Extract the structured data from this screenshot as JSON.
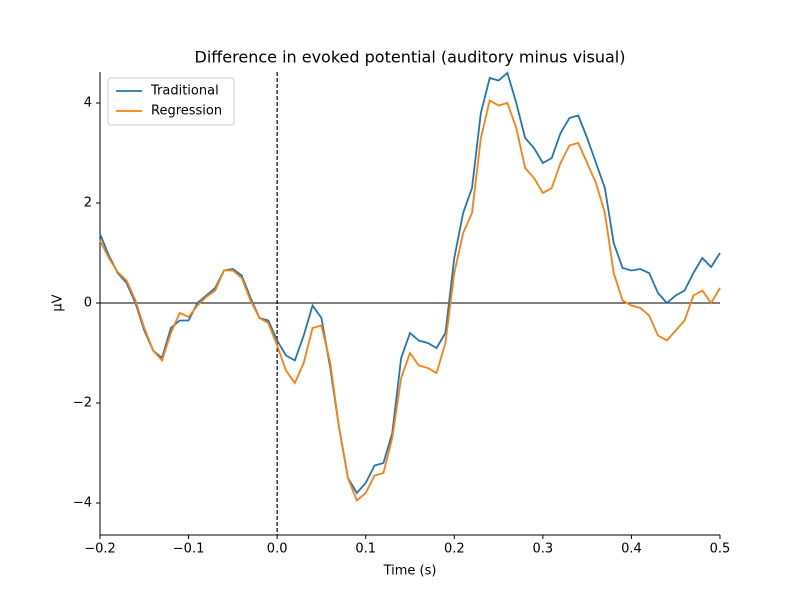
{
  "chart_data": {
    "type": "line",
    "title": "Difference in evoked potential (auditory minus visual)",
    "xlabel": "Time (s)",
    "ylabel": "µV",
    "x": [
      -0.2,
      -0.19,
      -0.18,
      -0.17,
      -0.16,
      -0.15,
      -0.14,
      -0.13,
      -0.12,
      -0.11,
      -0.1,
      -0.09,
      -0.08,
      -0.07,
      -0.06,
      -0.05,
      -0.04,
      -0.03,
      -0.02,
      -0.01,
      0,
      0.01,
      0.02,
      0.03,
      0.04,
      0.05,
      0.06,
      0.07,
      0.08,
      0.09,
      0.1,
      0.11,
      0.12,
      0.13,
      0.14,
      0.15,
      0.16,
      0.17,
      0.18,
      0.19,
      0.2,
      0.21,
      0.22,
      0.23,
      0.24,
      0.25,
      0.26,
      0.27,
      0.28,
      0.29,
      0.3,
      0.31,
      0.32,
      0.33,
      0.34,
      0.35,
      0.36,
      0.37,
      0.38,
      0.39,
      0.4,
      0.41,
      0.42,
      0.43,
      0.44,
      0.45,
      0.46,
      0.47,
      0.48,
      0.49,
      0.5
    ],
    "series": [
      {
        "name": "Traditional",
        "color": "#1f77b4",
        "values": [
          1.38,
          0.95,
          0.6,
          0.4,
          0.0,
          -0.55,
          -0.95,
          -1.1,
          -0.5,
          -0.35,
          -0.35,
          0.0,
          0.15,
          0.3,
          0.65,
          0.68,
          0.55,
          0.1,
          -0.3,
          -0.35,
          -0.75,
          -1.05,
          -1.15,
          -0.65,
          -0.05,
          -0.3,
          -1.3,
          -2.5,
          -3.5,
          -3.8,
          -3.6,
          -3.25,
          -3.2,
          -2.6,
          -1.1,
          -0.6,
          -0.75,
          -0.8,
          -0.9,
          -0.6,
          0.9,
          1.8,
          2.3,
          3.8,
          4.5,
          4.45,
          4.6,
          4.0,
          3.3,
          3.1,
          2.8,
          2.9,
          3.4,
          3.7,
          3.75,
          3.3,
          2.8,
          2.3,
          1.2,
          0.7,
          0.65,
          0.68,
          0.6,
          0.2,
          0.0,
          0.15,
          0.25,
          0.6,
          0.9,
          0.72,
          1.0
        ]
      },
      {
        "name": "Regression",
        "color": "#ff7f0e",
        "values": [
          1.25,
          0.9,
          0.62,
          0.45,
          0.05,
          -0.5,
          -0.95,
          -1.15,
          -0.6,
          -0.2,
          -0.28,
          -0.05,
          0.12,
          0.25,
          0.65,
          0.65,
          0.5,
          0.05,
          -0.3,
          -0.4,
          -0.85,
          -1.35,
          -1.6,
          -1.2,
          -0.5,
          -0.45,
          -1.2,
          -2.5,
          -3.5,
          -3.95,
          -3.8,
          -3.45,
          -3.4,
          -2.7,
          -1.5,
          -1.0,
          -1.25,
          -1.3,
          -1.4,
          -0.8,
          0.6,
          1.4,
          1.8,
          3.3,
          4.05,
          3.95,
          4.0,
          3.5,
          2.7,
          2.5,
          2.2,
          2.3,
          2.8,
          3.15,
          3.2,
          2.8,
          2.4,
          1.8,
          0.6,
          0.05,
          -0.05,
          -0.1,
          -0.25,
          -0.65,
          -0.75,
          -0.55,
          -0.35,
          0.15,
          0.25,
          0.0,
          0.3
        ]
      }
    ],
    "xlim": [
      -0.2,
      0.5
    ],
    "ylim": [
      -4.64,
      4.62
    ],
    "xticks": [
      {
        "value": -0.2,
        "label": "−0.2"
      },
      {
        "value": -0.1,
        "label": "−0.1"
      },
      {
        "value": 0,
        "label": "0.0"
      },
      {
        "value": 0.1,
        "label": "0.1"
      },
      {
        "value": 0.2,
        "label": "0.2"
      },
      {
        "value": 0.3,
        "label": "0.3"
      },
      {
        "value": 0.4,
        "label": "0.4"
      },
      {
        "value": 0.5,
        "label": "0.5"
      }
    ],
    "yticks": [
      {
        "value": -4,
        "label": "−4"
      },
      {
        "value": -2,
        "label": "−2"
      },
      0,
      2,
      4
    ],
    "axvline": 0,
    "axhline": 0,
    "legend": "upper left",
    "grid": false
  }
}
